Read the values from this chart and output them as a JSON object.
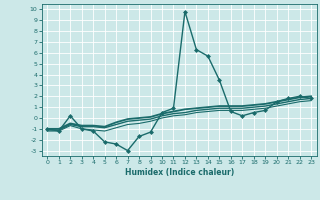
{
  "xlabel": "Humidex (Indice chaleur)",
  "ylabel": "",
  "xlim": [
    -0.5,
    23.5
  ],
  "ylim": [
    -3.5,
    10.5
  ],
  "xticks": [
    0,
    1,
    2,
    3,
    4,
    5,
    6,
    7,
    8,
    9,
    10,
    11,
    12,
    13,
    14,
    15,
    16,
    17,
    18,
    19,
    20,
    21,
    22,
    23
  ],
  "yticks": [
    -3,
    -2,
    -1,
    0,
    1,
    2,
    3,
    4,
    5,
    6,
    7,
    8,
    9,
    10
  ],
  "background_color": "#cce8e8",
  "grid_color": "#aad4d4",
  "line_color": "#1a6b6b",
  "series": [
    {
      "x": [
        0,
        1,
        2,
        3,
        4,
        5,
        6,
        7,
        8,
        9,
        10,
        11,
        12,
        13,
        14,
        15,
        16,
        17,
        18,
        19,
        20,
        21,
        22,
        23
      ],
      "y": [
        -1.0,
        -1.2,
        0.2,
        -1.0,
        -1.2,
        -2.2,
        -2.4,
        -3.0,
        -1.7,
        -1.3,
        0.5,
        0.9,
        9.8,
        6.3,
        5.7,
        3.5,
        0.6,
        0.2,
        0.5,
        0.7,
        1.5,
        1.8,
        2.0,
        1.8
      ],
      "marker": "D",
      "markersize": 2.0,
      "linewidth": 1.0
    },
    {
      "x": [
        0,
        1,
        2,
        3,
        4,
        5,
        6,
        7,
        8,
        9,
        10,
        11,
        12,
        13,
        14,
        15,
        16,
        17,
        18,
        19,
        20,
        21,
        22,
        23
      ],
      "y": [
        -1.0,
        -1.0,
        -0.5,
        -0.7,
        -0.7,
        -0.8,
        -0.4,
        -0.1,
        0.0,
        0.1,
        0.4,
        0.6,
        0.8,
        0.9,
        1.0,
        1.1,
        1.1,
        1.1,
        1.2,
        1.3,
        1.5,
        1.7,
        1.9,
        2.0
      ],
      "marker": null,
      "markersize": 0,
      "linewidth": 1.3
    },
    {
      "x": [
        0,
        1,
        2,
        3,
        4,
        5,
        6,
        7,
        8,
        9,
        10,
        11,
        12,
        13,
        14,
        15,
        16,
        17,
        18,
        19,
        20,
        21,
        22,
        23
      ],
      "y": [
        -1.1,
        -1.1,
        -0.6,
        -0.8,
        -0.8,
        -0.9,
        -0.6,
        -0.3,
        -0.2,
        -0.1,
        0.2,
        0.4,
        0.5,
        0.7,
        0.8,
        0.9,
        0.9,
        0.9,
        1.0,
        1.1,
        1.3,
        1.5,
        1.7,
        1.8
      ],
      "marker": null,
      "markersize": 0,
      "linewidth": 1.0
    },
    {
      "x": [
        0,
        1,
        2,
        3,
        4,
        5,
        6,
        7,
        8,
        9,
        10,
        11,
        12,
        13,
        14,
        15,
        16,
        17,
        18,
        19,
        20,
        21,
        22,
        23
      ],
      "y": [
        -1.2,
        -1.2,
        -0.7,
        -1.0,
        -1.1,
        -1.2,
        -0.9,
        -0.6,
        -0.5,
        -0.3,
        0.0,
        0.2,
        0.3,
        0.5,
        0.6,
        0.7,
        0.7,
        0.7,
        0.8,
        0.9,
        1.1,
        1.3,
        1.5,
        1.6
      ],
      "marker": null,
      "markersize": 0,
      "linewidth": 0.8
    }
  ]
}
